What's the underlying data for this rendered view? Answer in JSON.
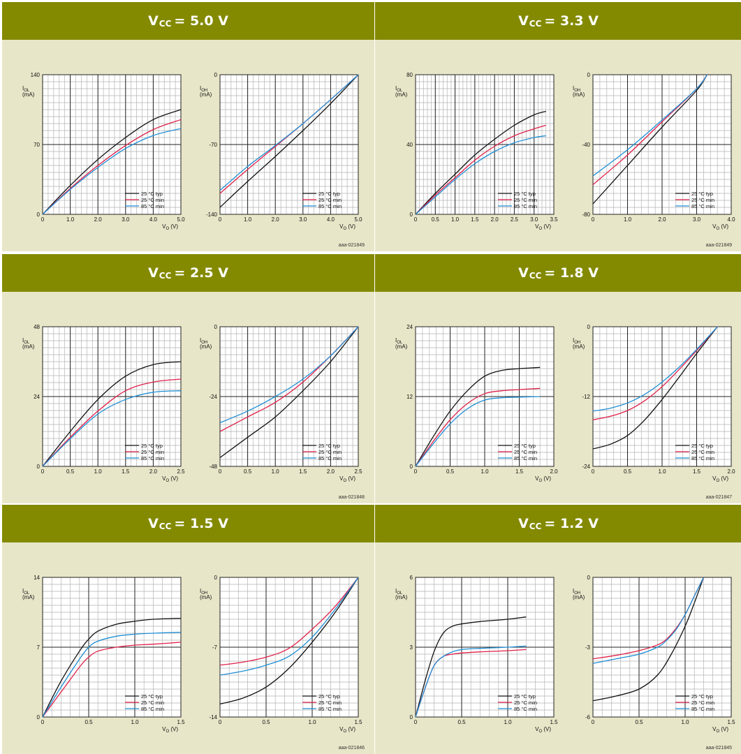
{
  "colors": {
    "header_bg": "#838a00",
    "panel_bg": "#e8e6c8",
    "typ": "#111111",
    "min25": "#e0204a",
    "min85": "#1f8fd6"
  },
  "legend": [
    "25 °C typ",
    "25 °C min",
    "85 °C min"
  ],
  "x_label": "V",
  "x_label_sub": "O",
  "x_label_unit": " (V)",
  "ol_label": "I",
  "ol_label_sub": "OL",
  "oh_label": "I",
  "oh_label_sub": "OH",
  "y_unit": "(mA)",
  "chart_data": [
    {
      "title": "V",
      "title_sub": "CC",
      "title_value": "= 5.0 V",
      "ref": "aaa-021849",
      "ol": {
        "type": "line",
        "xlim": [
          0,
          5
        ],
        "ylim": [
          0,
          140
        ],
        "xticks": [
          "0",
          "1.0",
          "2.0",
          "3.0",
          "4.0",
          "5.0"
        ],
        "yticks": [
          "0",
          "70",
          "140"
        ],
        "series": [
          {
            "name": "25 °C typ",
            "x": [
              0,
              1,
              2,
              3,
              4,
              5
            ],
            "y": [
              0,
              29,
              55,
              77,
              95,
              105
            ]
          },
          {
            "name": "25 °C min",
            "x": [
              0,
              1,
              2,
              3,
              4,
              5
            ],
            "y": [
              0,
              26,
              49,
              69,
              85,
              95
            ]
          },
          {
            "name": "85 °C min",
            "x": [
              0,
              1,
              2,
              3,
              4,
              5
            ],
            "y": [
              0,
              25,
              47,
              66,
              79,
              86
            ]
          }
        ]
      },
      "oh": {
        "type": "line",
        "xlim": [
          0,
          5
        ],
        "ylim": [
          -140,
          0
        ],
        "xticks": [
          "0",
          "1.0",
          "2.0",
          "3.0",
          "4.0",
          "5.0"
        ],
        "yticks": [
          "-140",
          "-70",
          "0"
        ],
        "series": [
          {
            "name": "25 °C typ",
            "x": [
              0,
              1,
              2,
              3,
              4,
              5
            ],
            "y": [
              -133,
              -107,
              -82,
              -56,
              -29,
              0
            ]
          },
          {
            "name": "25 °C min",
            "x": [
              0,
              1,
              2,
              3,
              4,
              5
            ],
            "y": [
              -119,
              -95,
              -72,
              -49,
              -25,
              0
            ]
          },
          {
            "name": "85 °C min",
            "x": [
              0,
              1,
              2,
              3,
              4,
              5
            ],
            "y": [
              -116,
              -92,
              -71,
              -49,
              -25,
              0
            ]
          }
        ]
      }
    },
    {
      "title": "V",
      "title_sub": "CC",
      "title_value": "= 3.3 V",
      "ref": "aaa-021849",
      "ol": {
        "type": "line",
        "xlim": [
          0,
          3.5
        ],
        "ylim": [
          0,
          80
        ],
        "xticks": [
          "0",
          "0.5",
          "1.0",
          "1.5",
          "2.0",
          "2.5",
          "3.0",
          "3.5"
        ],
        "yticks": [
          "0",
          "40",
          "80"
        ],
        "series": [
          {
            "name": "25 °C typ",
            "x": [
              0,
              0.5,
              1,
              1.5,
              2,
              2.5,
              3,
              3.3
            ],
            "y": [
              0,
              12,
              23,
              34,
              43,
              51,
              57,
              59
            ]
          },
          {
            "name": "25 °C min",
            "x": [
              0,
              0.5,
              1,
              1.5,
              2,
              2.5,
              3,
              3.3
            ],
            "y": [
              0,
              11,
              21,
              31,
              39,
              45,
              49,
              51
            ]
          },
          {
            "name": "85 °C min",
            "x": [
              0,
              0.5,
              1,
              1.5,
              2,
              2.5,
              3,
              3.3
            ],
            "y": [
              0,
              10,
              20,
              29,
              36,
              41,
              44,
              45
            ]
          }
        ]
      },
      "oh": {
        "type": "line",
        "xlim": [
          0,
          4
        ],
        "ylim": [
          -80,
          0
        ],
        "xticks": [
          "0",
          "1.0",
          "2.0",
          "3.0",
          "4.0"
        ],
        "yticks": [
          "-80",
          "-40",
          "0"
        ],
        "series": [
          {
            "name": "25 °C typ",
            "x": [
              0,
              1,
              2,
              3,
              3.3
            ],
            "y": [
              -74,
              -52,
              -30,
              -9,
              0
            ]
          },
          {
            "name": "25 °C min",
            "x": [
              0,
              1,
              2,
              3,
              3.3
            ],
            "y": [
              -63,
              -46,
              -27,
              -8,
              0
            ]
          },
          {
            "name": "85 °C min",
            "x": [
              0,
              1,
              2,
              3,
              3.3
            ],
            "y": [
              -58,
              -43,
              -26,
              -8,
              0
            ]
          }
        ]
      }
    },
    {
      "title": "V",
      "title_sub": "CC",
      "title_value": "= 2.5 V",
      "ref": "aaa-021848",
      "ol": {
        "type": "line",
        "xlim": [
          0,
          2.5
        ],
        "ylim": [
          0,
          48
        ],
        "xticks": [
          "0",
          "0.5",
          "1.0",
          "1.5",
          "2.0",
          "2.5"
        ],
        "yticks": [
          "0",
          "24",
          "48"
        ],
        "series": [
          {
            "name": "25 °C typ",
            "x": [
              0,
              0.5,
              1,
              1.5,
              2,
              2.5
            ],
            "y": [
              0,
              12,
              23,
              31,
              35,
              36
            ]
          },
          {
            "name": "25 °C min",
            "x": [
              0,
              0.5,
              1,
              1.5,
              2,
              2.5
            ],
            "y": [
              0,
              10,
              19,
              26,
              29,
              30
            ]
          },
          {
            "name": "85 °C min",
            "x": [
              0,
              0.5,
              1,
              1.5,
              2,
              2.5
            ],
            "y": [
              0,
              9.5,
              18,
              23,
              25.5,
              26
            ]
          }
        ]
      },
      "oh": {
        "type": "line",
        "xlim": [
          0,
          2.5
        ],
        "ylim": [
          -48,
          0
        ],
        "xticks": [
          "0",
          "0.5",
          "1.0",
          "1.5",
          "2.0",
          "2.5"
        ],
        "yticks": [
          "-48",
          "-24",
          "0"
        ],
        "series": [
          {
            "name": "25 °C typ",
            "x": [
              0,
              0.5,
              1,
              1.5,
              2,
              2.5
            ],
            "y": [
              -45,
              -38,
              -31,
              -22,
              -12,
              0
            ]
          },
          {
            "name": "25 °C min",
            "x": [
              0,
              0.5,
              1,
              1.5,
              2,
              2.5
            ],
            "y": [
              -36,
              -31,
              -26,
              -19,
              -10,
              0
            ]
          },
          {
            "name": "85 °C min",
            "x": [
              0,
              0.5,
              1,
              1.5,
              2,
              2.5
            ],
            "y": [
              -33,
              -29,
              -24,
              -18,
              -10,
              0
            ]
          }
        ]
      }
    },
    {
      "title": "V",
      "title_sub": "CC",
      "title_value": "= 1.8 V",
      "ref": "aaa-021847",
      "ol": {
        "type": "line",
        "xlim": [
          0,
          2
        ],
        "ylim": [
          0,
          24
        ],
        "xticks": [
          "0",
          "0.5",
          "1.0",
          "1.5",
          "2.0"
        ],
        "yticks": [
          "0",
          "12",
          "24"
        ],
        "series": [
          {
            "name": "25 °C typ",
            "x": [
              0,
              0.25,
              0.5,
              0.75,
              1,
              1.25,
              1.5,
              1.8
            ],
            "y": [
              0,
              5,
              9.5,
              13,
              15.5,
              16.5,
              16.8,
              17
            ]
          },
          {
            "name": "25 °C min",
            "x": [
              0,
              0.25,
              0.5,
              0.75,
              1,
              1.25,
              1.5,
              1.8
            ],
            "y": [
              0,
              4.2,
              8,
              10.8,
              12.5,
              13,
              13.2,
              13.4
            ]
          },
          {
            "name": "85 °C min",
            "x": [
              0,
              0.25,
              0.5,
              0.75,
              1,
              1.25,
              1.5,
              1.8
            ],
            "y": [
              0,
              3.8,
              7.3,
              9.9,
              11.4,
              11.8,
              11.9,
              12
            ]
          }
        ]
      },
      "oh": {
        "type": "line",
        "xlim": [
          0,
          2
        ],
        "ylim": [
          -24,
          0
        ],
        "xticks": [
          "0",
          "0.5",
          "1.0",
          "1.5",
          "2.0"
        ],
        "yticks": [
          "-24",
          "-12",
          "0"
        ],
        "series": [
          {
            "name": "25 °C typ",
            "x": [
              0,
              0.25,
              0.5,
              0.75,
              1,
              1.25,
              1.5,
              1.8
            ],
            "y": [
              -21,
              -20.2,
              -18.7,
              -16,
              -12.5,
              -8.6,
              -4.6,
              0
            ]
          },
          {
            "name": "25 °C min",
            "x": [
              0,
              0.25,
              0.5,
              0.75,
              1,
              1.25,
              1.5,
              1.8
            ],
            "y": [
              -16,
              -15.4,
              -14.4,
              -12.7,
              -10.3,
              -7.3,
              -4.1,
              0
            ]
          },
          {
            "name": "85 °C min",
            "x": [
              0,
              0.25,
              0.5,
              0.75,
              1,
              1.25,
              1.5,
              1.8
            ],
            "y": [
              -14.5,
              -14,
              -13.1,
              -11.6,
              -9.5,
              -6.9,
              -3.9,
              0
            ]
          }
        ]
      }
    },
    {
      "title": "V",
      "title_sub": "CC",
      "title_value": "= 1.5 V",
      "ref": "aaa-021846",
      "ol": {
        "type": "line",
        "xlim": [
          0,
          1.5
        ],
        "ylim": [
          0,
          14
        ],
        "xticks": [
          "0",
          "0.5",
          "1.0",
          "1.5"
        ],
        "yticks": [
          "0",
          "7",
          "14"
        ],
        "series": [
          {
            "name": "25 °C typ",
            "x": [
              0,
              0.2,
              0.4,
              0.5,
              0.6,
              0.8,
              1,
              1.2,
              1.5
            ],
            "y": [
              0,
              3.6,
              6.6,
              7.8,
              8.6,
              9.3,
              9.6,
              9.8,
              9.9
            ]
          },
          {
            "name": "25 °C min",
            "x": [
              0,
              0.2,
              0.4,
              0.5,
              0.6,
              0.8,
              1,
              1.2,
              1.5
            ],
            "y": [
              0,
              2.5,
              5,
              6,
              6.6,
              7,
              7.2,
              7.3,
              7.5
            ]
          },
          {
            "name": "85 °C min",
            "x": [
              0,
              0.2,
              0.4,
              0.5,
              0.6,
              0.8,
              1,
              1.2,
              1.5
            ],
            "y": [
              0,
              3,
              5.8,
              7,
              7.6,
              8.1,
              8.3,
              8.4,
              8.5
            ]
          }
        ]
      },
      "oh": {
        "type": "line",
        "xlim": [
          0,
          1.5
        ],
        "ylim": [
          -14,
          0
        ],
        "xticks": [
          "0",
          "0.5",
          "1.0",
          "1.5"
        ],
        "yticks": [
          "-14",
          "-7",
          "0"
        ],
        "series": [
          {
            "name": "25 °C typ",
            "x": [
              0,
              0.25,
              0.5,
              0.75,
              1,
              1.25,
              1.5
            ],
            "y": [
              -12.7,
              -12.1,
              -11,
              -9.1,
              -6.5,
              -3.5,
              0
            ]
          },
          {
            "name": "25 °C min",
            "x": [
              0,
              0.25,
              0.5,
              0.75,
              1,
              1.25,
              1.5
            ],
            "y": [
              -8.8,
              -8.5,
              -8,
              -7.1,
              -5.2,
              -2.9,
              0
            ]
          },
          {
            "name": "85 °C min",
            "x": [
              0,
              0.25,
              0.5,
              0.75,
              1,
              1.25,
              1.5
            ],
            "y": [
              -9.8,
              -9.4,
              -8.8,
              -7.9,
              -6,
              -3.2,
              0
            ]
          }
        ]
      }
    },
    {
      "title": "V",
      "title_sub": "CC",
      "title_value": "= 1.2 V",
      "ref": "aaa-021845",
      "ol": {
        "type": "line",
        "xlim": [
          0,
          1.5
        ],
        "ylim": [
          0,
          6
        ],
        "xticks": [
          "0",
          "0.5",
          "1.0",
          "1.5"
        ],
        "yticks": [
          "0",
          "3",
          "6"
        ],
        "series": [
          {
            "name": "25 °C typ",
            "x": [
              0,
              0.1,
              0.2,
              0.3,
              0.4,
              0.5,
              0.7,
              1,
              1.2
            ],
            "y": [
              0,
              1.5,
              2.8,
              3.6,
              3.9,
              4,
              4.1,
              4.2,
              4.3
            ]
          },
          {
            "name": "25 °C min",
            "x": [
              0,
              0.1,
              0.2,
              0.3,
              0.4,
              0.5,
              0.7,
              1,
              1.2
            ],
            "y": [
              0,
              1.2,
              2.2,
              2.6,
              2.7,
              2.75,
              2.8,
              2.85,
              2.9
            ]
          },
          {
            "name": "85 °C min",
            "x": [
              0,
              0.1,
              0.2,
              0.3,
              0.4,
              0.5,
              0.7,
              1,
              1.2
            ],
            "y": [
              0,
              1.2,
              2.2,
              2.6,
              2.8,
              2.9,
              2.95,
              3,
              3.05
            ]
          }
        ]
      },
      "oh": {
        "type": "line",
        "xlim": [
          0,
          1.5
        ],
        "ylim": [
          -6,
          0
        ],
        "xticks": [
          "0",
          "0.5",
          "1.0",
          "1.5"
        ],
        "yticks": [
          "-6",
          "-3",
          "0"
        ],
        "series": [
          {
            "name": "25 °C typ",
            "x": [
              0,
              0.25,
              0.5,
              0.7,
              0.85,
              1,
              1.1,
              1.2
            ],
            "y": [
              -5.3,
              -5.1,
              -4.8,
              -4.2,
              -3.3,
              -2.1,
              -1.1,
              0
            ]
          },
          {
            "name": "25 °C min",
            "x": [
              0,
              0.25,
              0.5,
              0.7,
              0.8,
              0.9,
              1,
              1.1,
              1.2
            ],
            "y": [
              -3.5,
              -3.35,
              -3.15,
              -2.9,
              -2.65,
              -2.2,
              -1.6,
              -0.8,
              0
            ]
          },
          {
            "name": "85 °C min",
            "x": [
              0,
              0.25,
              0.5,
              0.7,
              0.8,
              0.9,
              1,
              1.1,
              1.2
            ],
            "y": [
              -3.7,
              -3.5,
              -3.3,
              -3,
              -2.7,
              -2.25,
              -1.6,
              -0.8,
              0
            ]
          }
        ]
      }
    }
  ]
}
